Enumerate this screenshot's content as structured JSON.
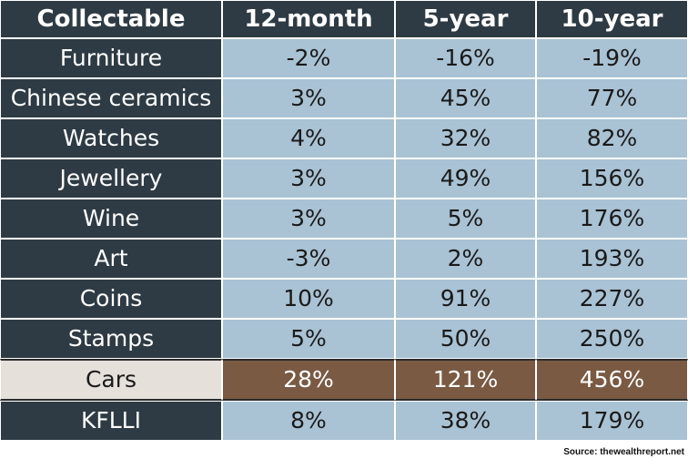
{
  "chart_data": {
    "type": "table",
    "columns": [
      "Collectable",
      "12-month",
      "5-year",
      "10-year"
    ],
    "rows": [
      {
        "name": "Furniture",
        "values": [
          "-2%",
          "-16%",
          "-19%"
        ],
        "highlight": false
      },
      {
        "name": "Chinese ceramics",
        "values": [
          "3%",
          "45%",
          "77%"
        ],
        "highlight": false
      },
      {
        "name": "Watches",
        "values": [
          "4%",
          "32%",
          "82%"
        ],
        "highlight": false
      },
      {
        "name": "Jewellery",
        "values": [
          "3%",
          "49%",
          "156%"
        ],
        "highlight": false
      },
      {
        "name": "Wine",
        "values": [
          "3%",
          "5%",
          "176%"
        ],
        "highlight": false
      },
      {
        "name": "Art",
        "values": [
          "-3%",
          "2%",
          "193%"
        ],
        "highlight": false
      },
      {
        "name": "Coins",
        "values": [
          "10%",
          "91%",
          "227%"
        ],
        "highlight": false
      },
      {
        "name": "Stamps",
        "values": [
          "5%",
          "50%",
          "250%"
        ],
        "highlight": false
      },
      {
        "name": "Cars",
        "values": [
          "28%",
          "121%",
          "456%"
        ],
        "highlight": true
      },
      {
        "name": "KFLLI",
        "values": [
          "8%",
          "38%",
          "179%"
        ],
        "highlight": false
      }
    ],
    "source": "Source: thewealthreport.net"
  },
  "colors": {
    "header_bg": "#2e3b44",
    "value_bg": "#a9c2d4",
    "highlight_label_bg": "#e6e0da",
    "highlight_value_bg": "#7a5a43"
  }
}
